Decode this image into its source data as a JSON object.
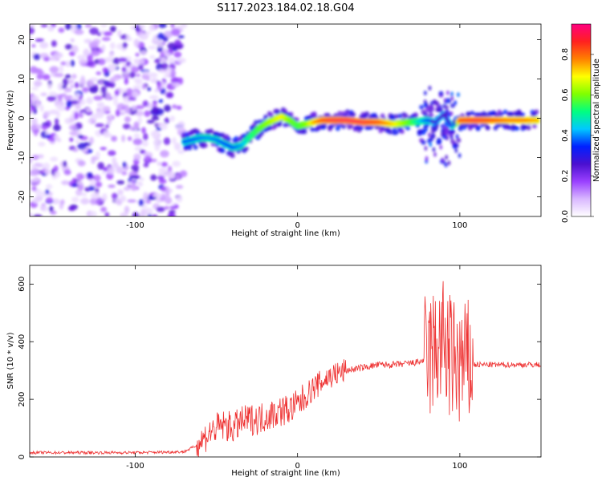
{
  "title": "S117.2023.184.02.18.G04",
  "chart_data": [
    {
      "type": "heatmap",
      "xlabel": "Height of straight line (km)",
      "ylabel": "Frequency (Hz)",
      "xlim": [
        -165,
        150
      ],
      "ylim": [
        -25,
        24
      ],
      "xticks": [
        -100,
        0,
        100
      ],
      "yticks": [
        -20,
        -10,
        0,
        10,
        20
      ],
      "noise_region": {
        "x": [
          -165,
          -70
        ],
        "y": [
          -25,
          24
        ]
      },
      "ridge": {
        "x": [
          -70,
          -65,
          -60,
          -55,
          -50,
          -45,
          -40,
          -35,
          -30,
          -25,
          -20,
          -15,
          -10,
          -5,
          0,
          5,
          10,
          15,
          20,
          30,
          40,
          50,
          60,
          70,
          80,
          85,
          90,
          95,
          100,
          110,
          120,
          130,
          140,
          148
        ],
        "y": [
          -6,
          -5.5,
          -5,
          -5,
          -5.5,
          -6.5,
          -7.5,
          -7,
          -5,
          -3,
          -1.5,
          -0.5,
          0.5,
          -0.5,
          -2,
          -1.5,
          -1,
          -0.5,
          -0.5,
          -0.5,
          -1,
          -1,
          -1.5,
          -1,
          -0.5,
          -1,
          1,
          -2,
          -0.5,
          -0.5,
          -0.5,
          -0.5,
          -0.5,
          -0.5
        ],
        "amplitude": [
          0.35,
          0.35,
          0.38,
          0.4,
          0.38,
          0.35,
          0.35,
          0.4,
          0.5,
          0.55,
          0.6,
          0.65,
          0.7,
          0.6,
          0.55,
          0.6,
          0.75,
          0.85,
          0.9,
          0.92,
          0.9,
          0.85,
          0.7,
          0.55,
          0.35,
          0.3,
          0.25,
          0.3,
          0.85,
          0.9,
          0.85,
          0.8,
          0.8,
          0.75
        ]
      },
      "colorbar": {
        "label": "Normalized spectral amplitude",
        "range": [
          0,
          0.95
        ],
        "ticks": [
          "0.0",
          "0.2",
          "0.4",
          "0.6",
          "0.8"
        ],
        "tick_values": [
          0,
          0.2,
          0.4,
          0.6,
          0.8
        ],
        "colors": [
          "#ffffff",
          "#d9b8ff",
          "#9a40ff",
          "#4a10d0",
          "#0020ff",
          "#00c8ff",
          "#00ff80",
          "#80ff00",
          "#ffff00",
          "#ff8000",
          "#ff2020",
          "#ff0080"
        ]
      }
    },
    {
      "type": "line",
      "xlabel": "Height of straight line (km)",
      "ylabel": "SNR (10 * v/v)",
      "xlim": [
        -165,
        150
      ],
      "ylim": [
        0,
        665
      ],
      "xticks": [
        -100,
        0,
        100
      ],
      "yticks": [
        0,
        200,
        400,
        600
      ],
      "color": "#ee3030",
      "series": [
        {
          "x": [
            -165,
            -140,
            -120,
            -100,
            -80,
            -70,
            -62,
            -55,
            -50,
            -45,
            -40,
            -35,
            -30,
            -25,
            -20,
            -15,
            -10,
            -5,
            0,
            5,
            10,
            15,
            20,
            25,
            30,
            40,
            50,
            60,
            70,
            75,
            80,
            85,
            90,
            95,
            100,
            105,
            110,
            120,
            130,
            140,
            150
          ],
          "y": [
            15,
            15,
            15,
            15,
            17,
            18,
            40,
            80,
            100,
            110,
            100,
            120,
            130,
            130,
            140,
            150,
            160,
            165,
            180,
            210,
            240,
            260,
            280,
            290,
            300,
            310,
            320,
            320,
            325,
            330,
            340,
            370,
            400,
            330,
            320,
            320,
            320,
            320,
            320,
            320,
            320
          ]
        }
      ]
    }
  ]
}
